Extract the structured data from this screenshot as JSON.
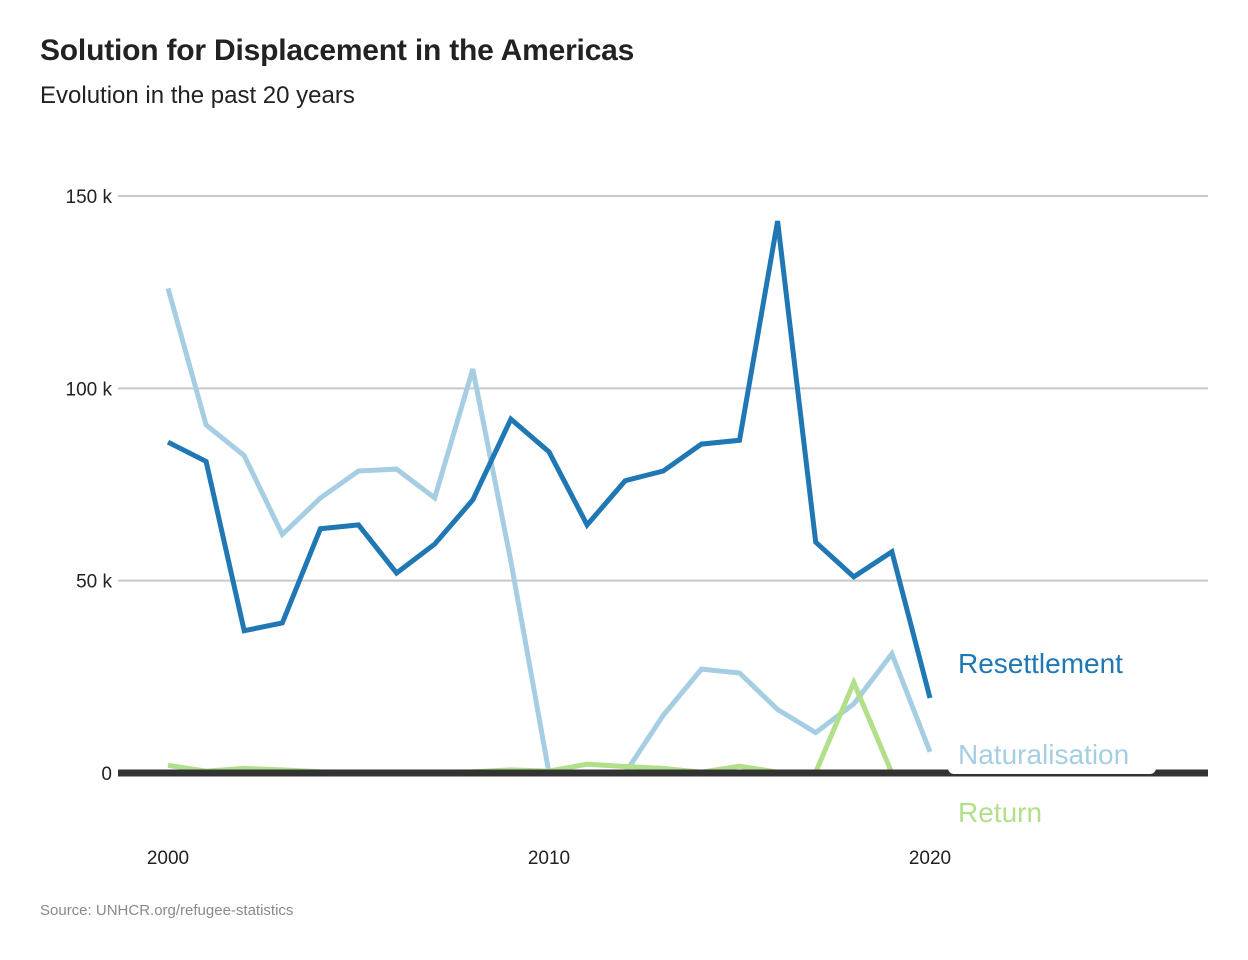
{
  "header": {
    "title": "Solution for Displacement in the Americas",
    "subtitle": "Evolution in the past 20 years"
  },
  "footer": {
    "source": "Source: UNHCR.org/refugee-statistics"
  },
  "chart_data": {
    "type": "line",
    "title": "Solution for Displacement in the Americas",
    "subtitle": "Evolution in the past 20 years",
    "xlabel": "",
    "ylabel": "",
    "x": [
      2000,
      2001,
      2002,
      2003,
      2004,
      2005,
      2006,
      2007,
      2008,
      2009,
      2010,
      2011,
      2012,
      2013,
      2014,
      2015,
      2016,
      2017,
      2018,
      2019,
      2020
    ],
    "xlim": [
      1999.8,
      2027.4
    ],
    "ylim": [
      0,
      150000
    ],
    "x_ticks": [
      {
        "value": 2000,
        "label": "2000"
      },
      {
        "value": 2010,
        "label": "2010"
      },
      {
        "value": 2020,
        "label": "2020"
      }
    ],
    "y_ticks": [
      {
        "value": 0,
        "label": "0"
      },
      {
        "value": 50000,
        "label": "50 k"
      },
      {
        "value": 100000,
        "label": "100 k"
      },
      {
        "value": 150000,
        "label": "150 k"
      }
    ],
    "grid": true,
    "legend": "direct labels at line ends (right)",
    "series": [
      {
        "name": "Resettlement",
        "color": "#1f77b4",
        "values": [
          86000,
          81000,
          37000,
          39000,
          63500,
          64500,
          52000,
          59500,
          71000,
          92000,
          83500,
          64500,
          76000,
          78500,
          85500,
          86500,
          143500,
          60000,
          51000,
          57500,
          19500
        ]
      },
      {
        "name": "Naturalisation",
        "color": "#a6cee3",
        "values": [
          126000,
          90500,
          82500,
          62000,
          71500,
          78500,
          79000,
          71500,
          105000,
          55000,
          0,
          0,
          0,
          15000,
          27000,
          26000,
          16500,
          10500,
          18000,
          31000,
          5500
        ]
      },
      {
        "name": "Return",
        "color": "#b2df8a",
        "values": [
          2000,
          500,
          1200,
          800,
          300,
          200,
          200,
          200,
          300,
          800,
          500,
          2300,
          1700,
          1200,
          200,
          1800,
          200,
          200,
          23500,
          0,
          0
        ]
      }
    ]
  }
}
